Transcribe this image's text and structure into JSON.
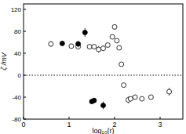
{
  "chart_data": {
    "type": "scatter",
    "x_label": "log₁₀(r)",
    "y_label": "ζ /mV",
    "xlim": [
      0,
      3.5
    ],
    "xticks": [
      0,
      1,
      2,
      3
    ],
    "ylim": [
      -80,
      130
    ],
    "yticks": [
      -80,
      -40,
      0,
      40,
      80,
      120
    ],
    "reference_line": 0,
    "series": [
      {
        "marker": "open",
        "color": "#000000",
        "x": [
          0.6,
          1.05,
          1.2,
          1.45,
          1.55,
          1.65,
          1.75,
          1.85,
          1.95,
          2.0,
          2.05,
          2.1,
          2.15,
          2.2,
          2.3,
          2.35,
          2.45,
          2.6,
          2.8,
          3.2
        ],
        "values": [
          57,
          53,
          52,
          52,
          52,
          47,
          49,
          55,
          70,
          88,
          63,
          50,
          20,
          -18,
          -45,
          -43,
          -40,
          -43,
          -40,
          -30
        ],
        "errors": [
          5,
          3,
          3,
          3,
          3,
          6,
          5,
          4,
          4,
          4,
          4,
          3,
          3,
          3,
          6,
          4,
          3,
          3,
          3,
          7
        ]
      },
      {
        "marker": "filled",
        "color": "#000000",
        "x": [
          0.85,
          1.2,
          1.35,
          1.5,
          1.55,
          1.75
        ],
        "values": [
          58,
          57,
          78,
          -48,
          -46,
          -55
        ],
        "errors": [
          4,
          6,
          8,
          3,
          3,
          7
        ]
      }
    ]
  }
}
